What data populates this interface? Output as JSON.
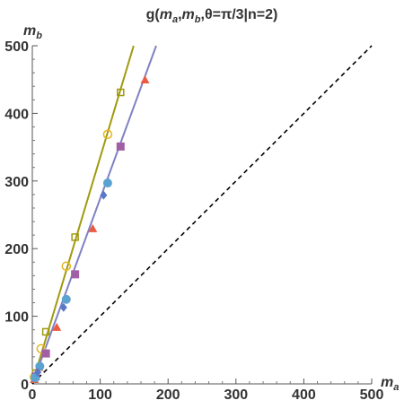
{
  "chart_data": {
    "type": "scatter",
    "title": {
      "prefix": "g(",
      "a_var": "m",
      "a_sub": "a",
      "sep1": ",",
      "b_var": "m",
      "b_sub": "b",
      "rest": ",θ=π/3|n=2)"
    },
    "xlabel": {
      "var": "m",
      "sub": "a"
    },
    "ylabel": {
      "var": "m",
      "sub": "b"
    },
    "xlim": [
      0,
      500
    ],
    "ylim": [
      0,
      500
    ],
    "xticks": [
      "0",
      "100",
      "200",
      "300",
      "400",
      "500"
    ],
    "yticks": [
      "0",
      "100",
      "200",
      "300",
      "400",
      "500"
    ],
    "grid": false,
    "lines": [
      {
        "kind": "solid",
        "color": "#a09a10",
        "slope": 3.35,
        "intercept": 0
      },
      {
        "kind": "solid",
        "color": "#7f82c4",
        "slope": 2.74,
        "intercept": 0
      },
      {
        "kind": "dashed",
        "color": "#000000",
        "slope": 1,
        "intercept": 0
      }
    ],
    "series": [
      {
        "marker": "open-circle",
        "color": "#e5b51f",
        "x": [
          3,
          13,
          50,
          111
        ],
        "y": [
          10,
          52,
          174,
          369
        ]
      },
      {
        "marker": "open-square",
        "color": "#a09a10",
        "x": [
          5,
          20,
          63,
          130
        ],
        "y": [
          16,
          77,
          217,
          431
        ]
      },
      {
        "marker": "triangle",
        "color": "#ed5a43",
        "x": [
          3,
          10,
          36,
          89,
          166
        ],
        "y": [
          6,
          24,
          83,
          229,
          449
        ]
      },
      {
        "marker": "square",
        "color": "#a15fa6",
        "x": [
          5,
          20,
          63,
          130
        ],
        "y": [
          11,
          45,
          162,
          351
        ]
      },
      {
        "marker": "circle",
        "color": "#5aa3d1",
        "x": [
          4,
          11,
          50,
          111
        ],
        "y": [
          9,
          26,
          125,
          297
        ]
      },
      {
        "marker": "diamond",
        "color": "#5a77c8",
        "x": [
          8,
          46,
          105
        ],
        "y": [
          17,
          113,
          279
        ]
      }
    ]
  }
}
